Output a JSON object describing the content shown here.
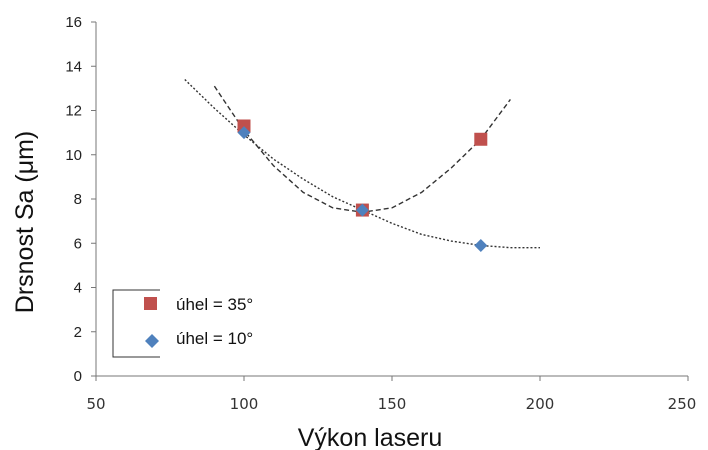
{
  "chart_data": {
    "type": "scatter",
    "title": "",
    "xlabel": "Výkon laseru",
    "ylabel": "Drsnost Sa (μm)",
    "xlim": [
      50,
      250
    ],
    "ylim": [
      0,
      16
    ],
    "xticks": [
      50,
      100,
      150,
      200,
      250
    ],
    "xtick_labels": [
      "50",
      "100",
      "150",
      "200",
      "250"
    ],
    "yticks": [
      0,
      2,
      4,
      6,
      8,
      10,
      12,
      14,
      16
    ],
    "grid": false,
    "legend_position": "bottom-left",
    "series": [
      {
        "name": "úhel = 35°",
        "marker": "square",
        "color": "#c0504d",
        "x": [
          100,
          140,
          180
        ],
        "y": [
          11.3,
          7.5,
          10.7
        ],
        "trendline": {
          "style": "dashed",
          "color": "#333333",
          "x": [
            90,
            100,
            110,
            120,
            130,
            140,
            150,
            160,
            170,
            180,
            190
          ],
          "y": [
            13.1,
            11.1,
            9.5,
            8.3,
            7.6,
            7.4,
            7.6,
            8.3,
            9.4,
            10.7,
            12.5
          ]
        }
      },
      {
        "name": "úhel = 10°",
        "marker": "diamond",
        "color": "#4f81bd",
        "x": [
          100,
          140,
          180
        ],
        "y": [
          11.0,
          7.5,
          5.9
        ],
        "trendline": {
          "style": "dotted",
          "color": "#333333",
          "x": [
            80,
            90,
            100,
            110,
            120,
            130,
            140,
            150,
            160,
            170,
            180,
            190,
            200
          ],
          "y": [
            13.4,
            12.1,
            10.9,
            9.8,
            8.9,
            8.1,
            7.5,
            6.9,
            6.4,
            6.1,
            5.9,
            5.8,
            5.8
          ]
        }
      }
    ]
  }
}
